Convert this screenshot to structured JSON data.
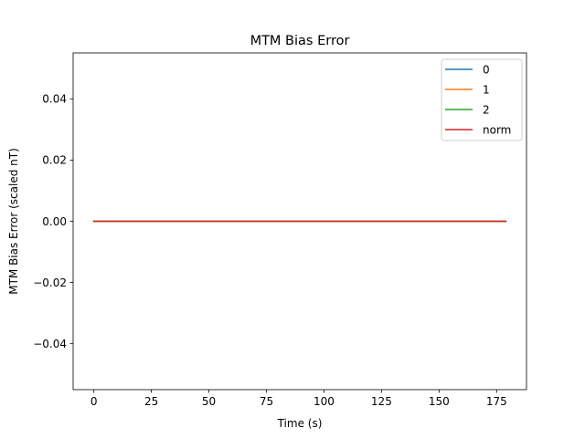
{
  "chart_data": {
    "type": "line",
    "title": "MTM Bias Error",
    "xlabel": "Time (s)",
    "ylabel": "MTM Bias Error (scaled nT)",
    "xlim": [
      -9,
      188
    ],
    "ylim": [
      -0.055,
      0.055
    ],
    "x_ticks": [
      0,
      25,
      50,
      75,
      100,
      125,
      150,
      175
    ],
    "x_tick_labels": [
      "0",
      "25",
      "50",
      "75",
      "100",
      "125",
      "150",
      "175"
    ],
    "y_ticks": [
      -0.04,
      -0.02,
      0.0,
      0.02,
      0.04
    ],
    "y_tick_labels": [
      "−0.04",
      "−0.02",
      "0.00",
      "0.02",
      "0.04"
    ],
    "grid": false,
    "legend_position": "top-right",
    "series": [
      {
        "name": "0",
        "color": "#1f77b4",
        "x": [
          0,
          179
        ],
        "y": [
          0,
          0
        ]
      },
      {
        "name": "1",
        "color": "#ff7f0e",
        "x": [
          0,
          179
        ],
        "y": [
          0,
          0
        ]
      },
      {
        "name": "2",
        "color": "#2ca02c",
        "x": [
          0,
          179
        ],
        "y": [
          0,
          0
        ]
      },
      {
        "name": "norm",
        "color": "#d62728",
        "x": [
          0,
          179
        ],
        "y": [
          0,
          0
        ]
      }
    ]
  }
}
